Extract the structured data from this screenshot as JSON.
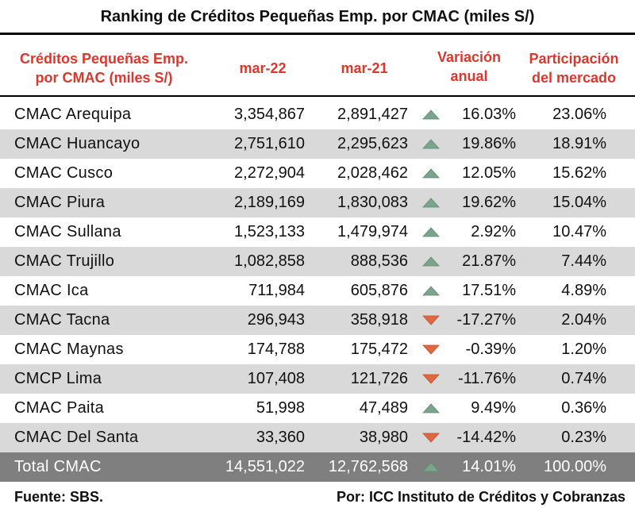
{
  "title": "Ranking de Créditos Pequeñas Emp. por CMAC (miles S/)",
  "header": {
    "col_name_line1": "Créditos Pequeñas Emp.",
    "col_name_line2": "por CMAC (miles S/)",
    "col_m22": "mar-22",
    "col_m21": "mar-21",
    "col_var_line1": "Variación",
    "col_var_line2": "anual",
    "col_part_line1": "Participación",
    "col_part_line2": "del mercado"
  },
  "colors": {
    "header_text": "#d9382a",
    "up_arrow": "#7aa58c",
    "down_arrow": "#e0683e",
    "row_shade": "#d9d9d9",
    "total_bg": "#7f7f7f"
  },
  "chart_data": {
    "type": "table",
    "title": "Ranking de Créditos Pequeñas Emp. por CMAC (miles S/)",
    "columns": [
      "Créditos Pequeñas Emp. por CMAC (miles S/)",
      "mar-22",
      "mar-21",
      "Variación anual",
      "Participación del mercado"
    ],
    "rows": [
      {
        "name": "CMAC Arequipa",
        "m22": "3,354,867",
        "m21": "2,891,427",
        "trend": "up",
        "var": "16.03%",
        "part": "23.06%"
      },
      {
        "name": "CMAC Huancayo",
        "m22": "2,751,610",
        "m21": "2,295,623",
        "trend": "up",
        "var": "19.86%",
        "part": "18.91%"
      },
      {
        "name": "CMAC Cusco",
        "m22": "2,272,904",
        "m21": "2,028,462",
        "trend": "up",
        "var": "12.05%",
        "part": "15.62%"
      },
      {
        "name": "CMAC Piura",
        "m22": "2,189,169",
        "m21": "1,830,083",
        "trend": "up",
        "var": "19.62%",
        "part": "15.04%"
      },
      {
        "name": "CMAC Sullana",
        "m22": "1,523,133",
        "m21": "1,479,974",
        "trend": "up",
        "var": "2.92%",
        "part": "10.47%"
      },
      {
        "name": "CMAC Trujillo",
        "m22": "1,082,858",
        "m21": "888,536",
        "trend": "up",
        "var": "21.87%",
        "part": "7.44%"
      },
      {
        "name": "CMAC Ica",
        "m22": "711,984",
        "m21": "605,876",
        "trend": "up",
        "var": "17.51%",
        "part": "4.89%"
      },
      {
        "name": "CMAC Tacna",
        "m22": "296,943",
        "m21": "358,918",
        "trend": "down",
        "var": "-17.27%",
        "part": "2.04%"
      },
      {
        "name": "CMAC Maynas",
        "m22": "174,788",
        "m21": "175,472",
        "trend": "down",
        "var": "-0.39%",
        "part": "1.20%"
      },
      {
        "name": "CMCP Lima",
        "m22": "107,408",
        "m21": "121,726",
        "trend": "down",
        "var": "-11.76%",
        "part": "0.74%"
      },
      {
        "name": "CMAC Paita",
        "m22": "51,998",
        "m21": "47,489",
        "trend": "up",
        "var": "9.49%",
        "part": "0.36%"
      },
      {
        "name": "CMAC Del Santa",
        "m22": "33,360",
        "m21": "38,980",
        "trend": "down",
        "var": "-14.42%",
        "part": "0.23%"
      }
    ],
    "total": {
      "name": "Total CMAC",
      "m22": "14,551,022",
      "m21": "12,762,568",
      "trend": "up",
      "var": "14.01%",
      "part": "100.00%"
    }
  },
  "footer": {
    "source": "Fuente: SBS.",
    "credit": "Por: ICC Instituto de Créditos y Cobranzas"
  }
}
